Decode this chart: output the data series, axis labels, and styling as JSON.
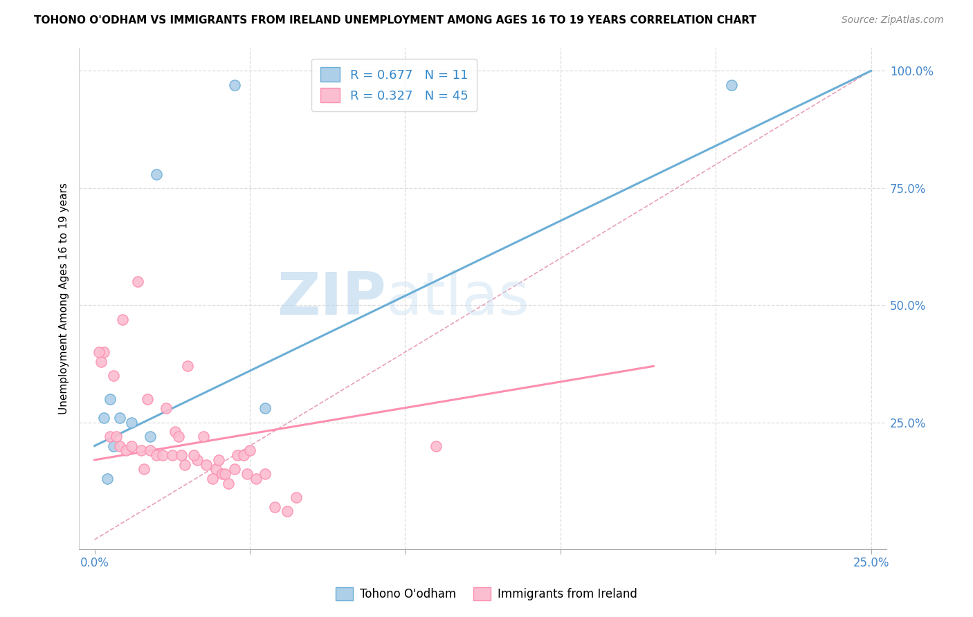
{
  "title": "TOHONO O'ODHAM VS IMMIGRANTS FROM IRELAND UNEMPLOYMENT AMONG AGES 16 TO 19 YEARS CORRELATION CHART",
  "source": "Source: ZipAtlas.com",
  "ylabel": "Unemployment Among Ages 16 to 19 years",
  "legend_label1": "Tohono O'odham",
  "legend_label2": "Immigrants from Ireland",
  "R1": 0.677,
  "N1": 11,
  "R2": 0.327,
  "N2": 45,
  "color_blue": "#6baed6",
  "color_pink": "#fc8faf",
  "color_blue_light": "#aecfe8",
  "color_pink_light": "#fbbdd0",
  "watermark_zip": "ZIP",
  "watermark_atlas": "atlas",
  "xlim": [
    0.0,
    25.0
  ],
  "ylim": [
    0.0,
    100.0
  ],
  "xticks": [
    0,
    5,
    10,
    15,
    20,
    25
  ],
  "yticks_right": [
    0,
    25,
    50,
    75,
    100
  ],
  "blue_scatter_x": [
    4.5,
    2.0,
    5.5,
    1.2,
    0.5,
    0.3,
    1.8,
    0.8,
    0.6,
    20.5,
    0.4
  ],
  "blue_scatter_y": [
    97,
    78,
    28,
    25,
    30,
    26,
    22,
    26,
    20,
    97,
    13
  ],
  "pink_scatter_x": [
    0.3,
    0.5,
    0.8,
    1.0,
    1.2,
    1.5,
    1.8,
    2.0,
    2.2,
    2.5,
    2.8,
    0.2,
    0.6,
    0.9,
    1.4,
    1.7,
    2.3,
    2.6,
    2.9,
    3.3,
    3.6,
    3.9,
    4.3,
    4.6,
    4.9,
    5.2,
    5.8,
    6.2,
    11.0,
    0.15,
    0.7,
    1.6,
    2.7,
    4.1,
    3.0,
    3.2,
    3.5,
    3.8,
    4.0,
    4.2,
    4.5,
    4.8,
    5.0,
    5.5,
    6.5
  ],
  "pink_scatter_y": [
    40,
    22,
    20,
    19,
    20,
    19,
    19,
    18,
    18,
    18,
    18,
    38,
    35,
    47,
    55,
    30,
    28,
    23,
    16,
    17,
    16,
    15,
    12,
    18,
    14,
    13,
    7,
    6,
    20,
    40,
    22,
    15,
    22,
    14,
    37,
    18,
    22,
    13,
    17,
    14,
    15,
    18,
    19,
    14,
    9
  ],
  "blue_line_x": [
    0.0,
    25.0
  ],
  "blue_line_y": [
    20.0,
    100.0
  ],
  "pink_line_x": [
    0.0,
    18.0
  ],
  "pink_line_y": [
    17.0,
    37.0
  ],
  "diag_line_x": [
    0.0,
    25.0
  ],
  "diag_line_y": [
    0.0,
    100.0
  ]
}
